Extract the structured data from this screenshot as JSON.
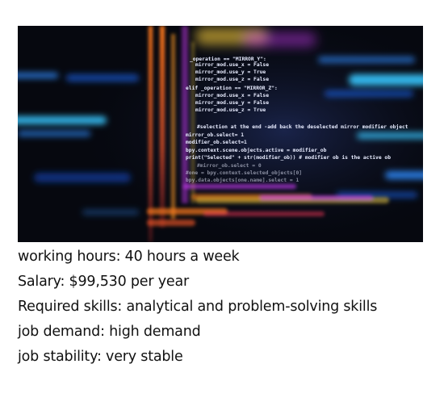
{
  "image": {
    "icon": "code-screen-photo",
    "code_lines": [
      "_operation == \"MIRROR_Y\":",
      "mirror_mod.use_x = False",
      "mirror_mod.use_y = True",
      "mirror_mod.use_z = False",
      "elif _operation == \"MIRROR_Z\":",
      "mirror_mod.use_x = False",
      "mirror_mod.use_y = False",
      "mirror_mod.use_z = True",
      "#selection at the end -add back the deselected mirror modifier object",
      "mirror_ob.select= 1",
      "modifier_ob.select=1",
      "bpy.context.scene.objects.active = modifier_ob",
      "print(\"Selected\" + str(modifier_ob)) # modifier ob is the active ob",
      "#mirror_ob.select = 0",
      "#one = bpy.context.selected_objects[0]",
      "bpy.data.objects[one.name].select = 1"
    ],
    "colors": {
      "background": "#06080f",
      "code": "#e8ecff",
      "accent_blue": "#2f8cff",
      "accent_cyan": "#39c6ff",
      "accent_orange": "#ff7a1a",
      "accent_magenta": "#d23cff",
      "accent_yellow": "#ffd23a"
    }
  },
  "info": {
    "working_hours": "working hours: 40 hours a week",
    "salary": "Salary: $99,530 per year",
    "required_skills": "Required skills: analytical and problem-solving skills",
    "job_demand": "job demand: high demand",
    "job_stability": "job stability: very stable"
  }
}
